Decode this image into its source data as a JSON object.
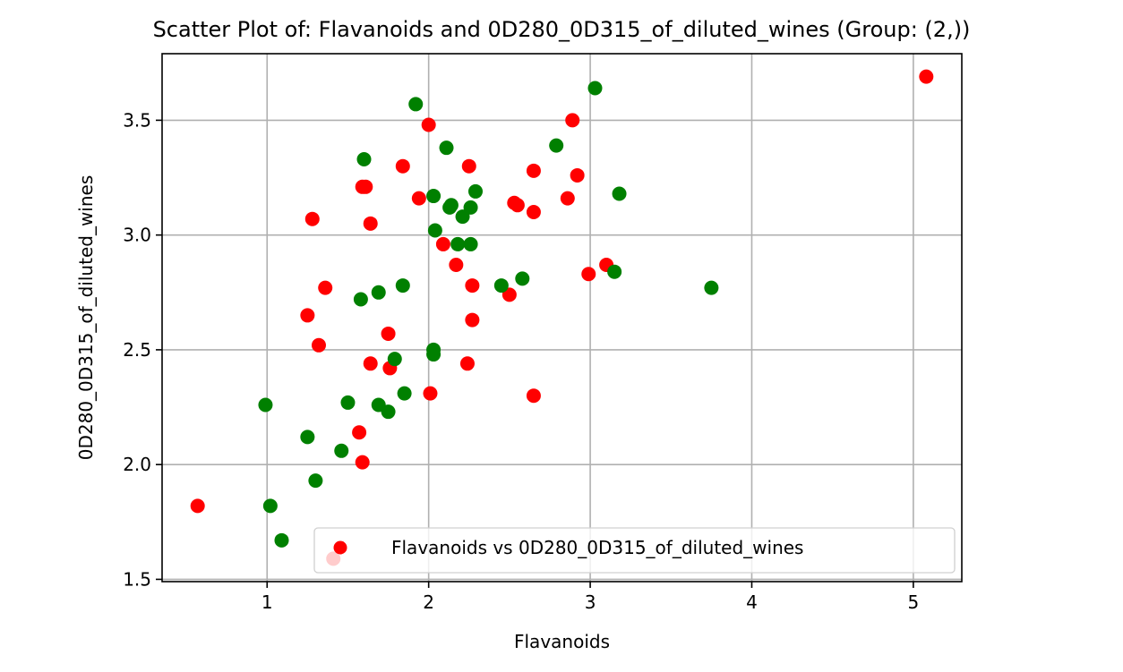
{
  "chart_data": {
    "type": "scatter",
    "title": "Scatter Plot of: Flavanoids and 0D280_0D315_of_diluted_wines (Group: (2,))",
    "xlabel": "Flavanoids",
    "ylabel": "0D280_0D315_of_diluted_wines",
    "xlim": [
      0.35,
      5.3
    ],
    "ylim": [
      1.49,
      3.79
    ],
    "xticks": [
      1,
      2,
      3,
      4,
      5
    ],
    "yticks": [
      1.5,
      2.0,
      2.5,
      3.0,
      3.5
    ],
    "xtick_labels": [
      "1",
      "2",
      "3",
      "4",
      "5"
    ],
    "ytick_labels": [
      "1.5",
      "2.0",
      "2.5",
      "3.0",
      "3.5"
    ],
    "grid": true,
    "legend_position": "lower-right",
    "series": [
      {
        "name": "Flavanoids vs 0D280_0D315_of_diluted_wines",
        "color": "#ff0000",
        "in_legend": true,
        "points": [
          [
            0.57,
            1.82
          ],
          [
            1.25,
            2.65
          ],
          [
            1.28,
            3.07
          ],
          [
            1.32,
            2.52
          ],
          [
            1.36,
            2.77
          ],
          [
            1.41,
            1.59
          ],
          [
            1.57,
            2.14
          ],
          [
            1.59,
            2.01
          ],
          [
            1.59,
            3.21
          ],
          [
            1.61,
            3.21
          ],
          [
            1.64,
            2.44
          ],
          [
            1.64,
            3.05
          ],
          [
            1.75,
            2.57
          ],
          [
            1.76,
            2.42
          ],
          [
            1.84,
            3.3
          ],
          [
            1.94,
            3.16
          ],
          [
            2.0,
            3.48
          ],
          [
            2.01,
            2.31
          ],
          [
            2.09,
            2.96
          ],
          [
            2.17,
            2.87
          ],
          [
            2.24,
            2.44
          ],
          [
            2.25,
            3.3
          ],
          [
            2.27,
            2.78
          ],
          [
            2.27,
            2.63
          ],
          [
            2.5,
            2.74
          ],
          [
            2.53,
            3.14
          ],
          [
            2.55,
            3.13
          ],
          [
            2.65,
            3.28
          ],
          [
            2.65,
            3.1
          ],
          [
            2.65,
            2.3
          ],
          [
            2.86,
            3.16
          ],
          [
            2.89,
            3.5
          ],
          [
            2.92,
            3.26
          ],
          [
            2.99,
            2.83
          ],
          [
            3.1,
            2.87
          ],
          [
            5.08,
            3.69
          ]
        ]
      },
      {
        "name": "",
        "color": "#008000",
        "in_legend": false,
        "points": [
          [
            0.99,
            2.26
          ],
          [
            1.02,
            1.82
          ],
          [
            1.09,
            1.67
          ],
          [
            1.25,
            2.12
          ],
          [
            1.3,
            1.93
          ],
          [
            1.46,
            2.06
          ],
          [
            1.5,
            2.27
          ],
          [
            1.58,
            2.72
          ],
          [
            1.6,
            3.33
          ],
          [
            1.69,
            2.26
          ],
          [
            1.69,
            2.75
          ],
          [
            1.75,
            2.23
          ],
          [
            1.79,
            2.46
          ],
          [
            1.84,
            2.78
          ],
          [
            1.85,
            2.31
          ],
          [
            1.92,
            3.57
          ],
          [
            2.03,
            3.17
          ],
          [
            2.03,
            2.5
          ],
          [
            2.03,
            2.48
          ],
          [
            2.04,
            3.02
          ],
          [
            2.11,
            3.38
          ],
          [
            2.13,
            3.12
          ],
          [
            2.14,
            3.13
          ],
          [
            2.18,
            2.96
          ],
          [
            2.21,
            3.08
          ],
          [
            2.26,
            3.12
          ],
          [
            2.26,
            2.96
          ],
          [
            2.29,
            3.19
          ],
          [
            2.45,
            2.78
          ],
          [
            2.58,
            2.81
          ],
          [
            2.79,
            3.39
          ],
          [
            3.03,
            3.64
          ],
          [
            3.15,
            2.84
          ],
          [
            3.18,
            3.18
          ],
          [
            3.75,
            2.77
          ]
        ]
      }
    ]
  }
}
